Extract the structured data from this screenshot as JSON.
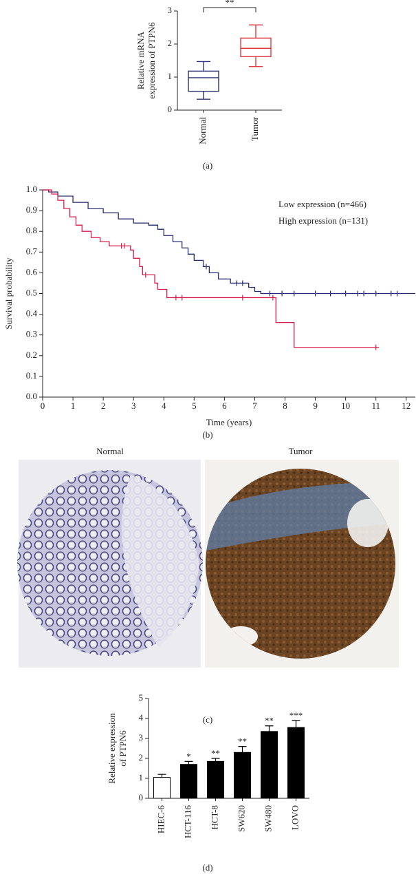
{
  "chart_data": [
    {
      "type": "box",
      "panel_label": "(a)",
      "ylabel": [
        "Relative mRNA",
        "expression of PTPN6"
      ],
      "categories": [
        "Normal",
        "Tumor"
      ],
      "colors": [
        "#2e3275",
        "#e0393e"
      ],
      "stats": {
        "whislo": [
          0.33,
          1.32
        ],
        "q1": [
          0.57,
          1.62
        ],
        "median": [
          0.98,
          1.87
        ],
        "q3": [
          1.18,
          2.18
        ],
        "whishi": [
          1.47,
          2.58
        ]
      },
      "ylim": [
        0,
        3
      ],
      "yticks": [
        0,
        1,
        2,
        3
      ],
      "significance": "**"
    },
    {
      "type": "step",
      "panel_label": "(b)",
      "xlabel": "Time (years)",
      "ylabel": "Survival probability",
      "xlim": [
        0,
        12.3
      ],
      "ylim": [
        0,
        1
      ],
      "xticks": [
        0,
        1,
        2,
        3,
        4,
        5,
        6,
        7,
        8,
        9,
        10,
        11,
        12
      ],
      "yticks": [
        {
          "value": 0,
          "label": "0.0"
        },
        {
          "value": 0.1,
          "label": "0.1"
        },
        {
          "value": 0.2,
          "label": "0.2"
        },
        {
          "value": 0.3,
          "label": "0.3"
        },
        {
          "value": 0.4,
          "label": "0.4"
        },
        {
          "value": 0.5,
          "label": "0.5"
        },
        {
          "value": 0.6,
          "label": "0.6"
        },
        {
          "value": 0.7,
          "label": "0.7"
        },
        {
          "value": 0.8,
          "label": "0.8"
        },
        {
          "value": 0.9,
          "label": "0.9"
        },
        {
          "value": 1,
          "label": "1.0"
        }
      ],
      "series": [
        {
          "name": "Low expression (n=466)",
          "color": "#262a6e",
          "x": [
            0,
            0.2,
            0.5,
            1,
            1.5,
            2,
            2.5,
            3,
            3.5,
            3.8,
            4,
            4.3,
            4.6,
            4.8,
            5,
            5.3,
            5.5,
            5.8,
            6.2,
            6.8,
            7,
            7.2,
            12.3
          ],
          "values": [
            1,
            0.99,
            0.97,
            0.94,
            0.91,
            0.89,
            0.86,
            0.84,
            0.83,
            0.81,
            0.78,
            0.75,
            0.72,
            0.69,
            0.66,
            0.63,
            0.6,
            0.57,
            0.55,
            0.53,
            0.51,
            0.5,
            0.5
          ],
          "censored": [
            5.4,
            6.4,
            6.6,
            7.5,
            7.9,
            8.3,
            9,
            9.5,
            10,
            10.4,
            10.6,
            11,
            11.5,
            11.7
          ]
        },
        {
          "name": "High expression (n=131)",
          "color": "#d81b4a",
          "x": [
            0,
            0.3,
            0.5,
            0.7,
            0.9,
            1.1,
            1.3,
            1.6,
            1.9,
            2.2,
            2.9,
            3,
            3.2,
            3.3,
            3.7,
            3.8,
            4.1,
            7.7,
            8.3,
            11.1
          ],
          "values": [
            1,
            0.98,
            0.95,
            0.91,
            0.87,
            0.83,
            0.8,
            0.77,
            0.75,
            0.73,
            0.71,
            0.67,
            0.63,
            0.59,
            0.55,
            0.52,
            0.48,
            0.36,
            0.24,
            0.24
          ],
          "censored": [
            2.6,
            2.7,
            3.4,
            4.4,
            4.6,
            6.6,
            7.6,
            11
          ]
        }
      ]
    },
    {
      "type": "bar",
      "panel_label": "(d)",
      "ylabel": [
        "Relative expression",
        "of PTPN6"
      ],
      "categories": [
        "HIEC-6",
        "HCT-116",
        "HCT-8",
        "SW620",
        "SW480",
        "LOVO"
      ],
      "values": [
        1.05,
        1.7,
        1.85,
        2.3,
        3.35,
        3.55
      ],
      "errors": [
        0.15,
        0.15,
        0.15,
        0.3,
        0.28,
        0.35
      ],
      "colors": [
        "#ffffff",
        "#000000",
        "#000000",
        "#000000",
        "#000000",
        "#000000"
      ],
      "significance": [
        null,
        "*",
        "**",
        "**",
        "**",
        "***"
      ],
      "ylim": [
        0,
        5
      ],
      "yticks": [
        0,
        1,
        2,
        3,
        4,
        5
      ]
    }
  ],
  "images": {
    "titles": [
      "Normal",
      "Tumor"
    ],
    "panel_label": "(c)"
  }
}
